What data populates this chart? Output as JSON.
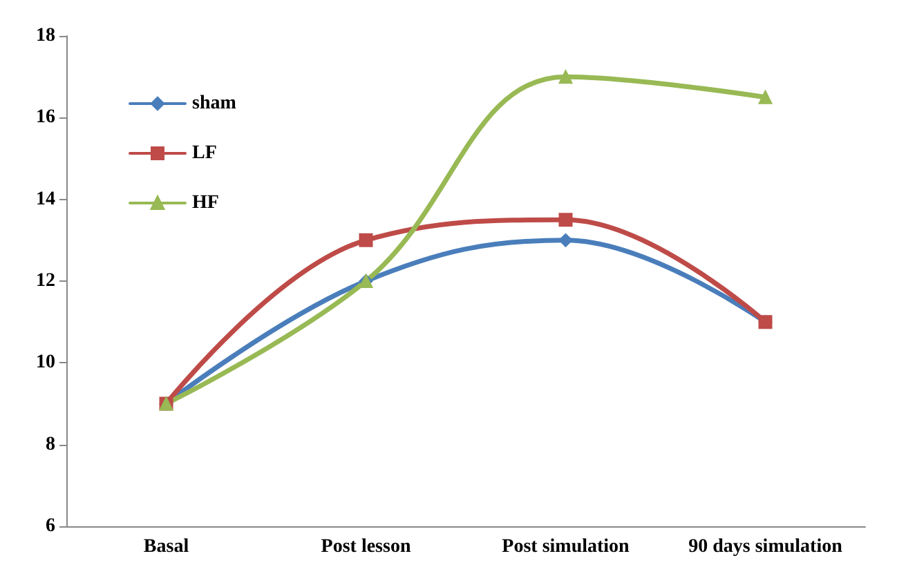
{
  "chart_data": {
    "type": "line",
    "categories": [
      "Basal",
      "Post lesson",
      "Post simulation",
      "90 days simulation"
    ],
    "series": [
      {
        "name": "sham",
        "color": "#4a7ebb",
        "marker": "diamond",
        "values": [
          9,
          12,
          13,
          11
        ]
      },
      {
        "name": "LF",
        "color": "#be4b48",
        "marker": "square",
        "values": [
          9,
          13,
          13.5,
          11
        ]
      },
      {
        "name": "HF",
        "color": "#98b954",
        "marker": "triangle",
        "values": [
          9,
          12,
          17,
          16.5
        ]
      }
    ],
    "ylim": [
      6,
      18
    ],
    "yticks": [
      6,
      8,
      10,
      12,
      14,
      16,
      18
    ],
    "grid": false,
    "legend": "top left",
    "line_style": "solid"
  }
}
